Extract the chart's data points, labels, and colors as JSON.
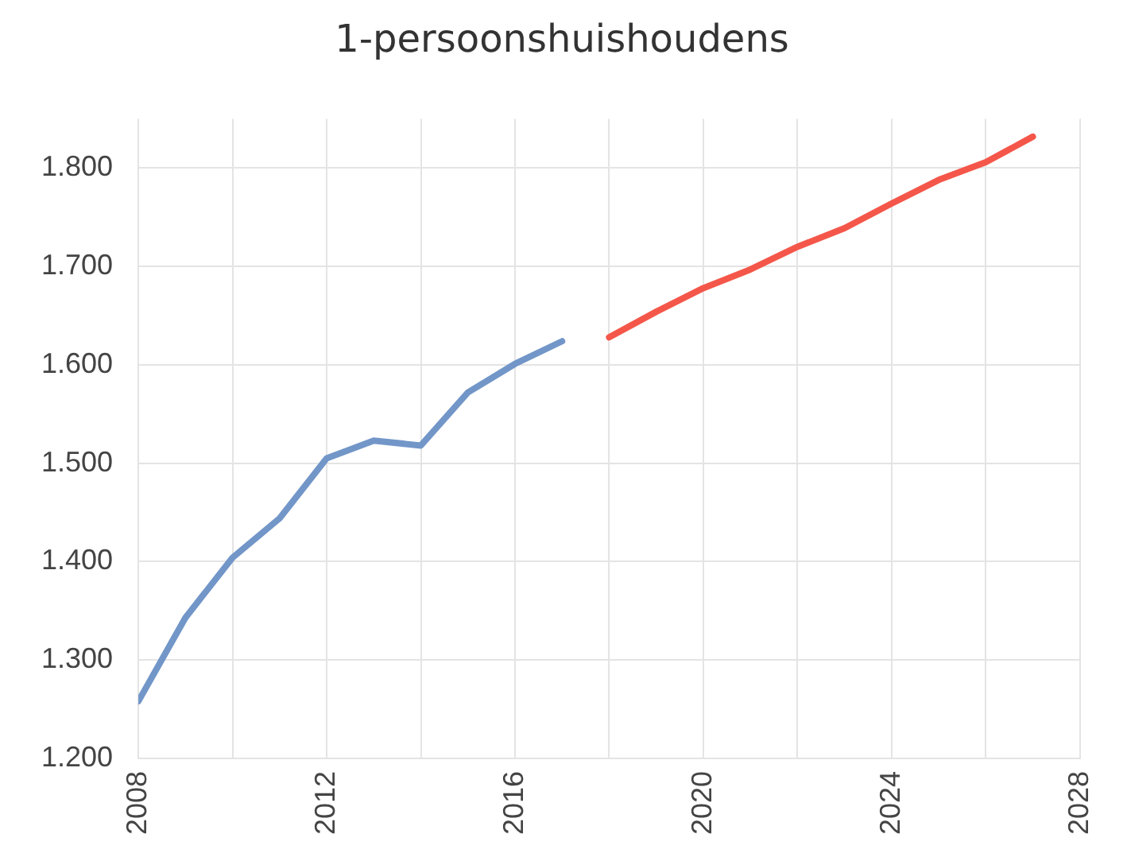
{
  "chart_data": {
    "type": "line",
    "title": "1-persoonshuishoudens",
    "series": [
      {
        "color": "#7296c8",
        "x": [
          2008,
          2009,
          2010,
          2011,
          2012,
          2013,
          2014,
          2015,
          2016,
          2017
        ],
        "values": [
          1258,
          1343,
          1404,
          1444,
          1505,
          1523,
          1518,
          1572,
          1601,
          1624
        ]
      },
      {
        "color": "#f4574a",
        "x": [
          2018,
          2019,
          2020,
          2021,
          2022,
          2023,
          2024,
          2025,
          2026,
          2027
        ],
        "values": [
          1628,
          1654,
          1678,
          1697,
          1720,
          1739,
          1764,
          1788,
          1806,
          1832
        ]
      }
    ],
    "xlim": [
      2008,
      2028
    ],
    "xticks": [
      2008,
      {
        "value": 2010,
        "label": null
      },
      2012,
      {
        "value": 2014,
        "label": null
      },
      2016,
      {
        "value": 2018,
        "label": null
      },
      2020,
      {
        "value": 2022,
        "label": null
      },
      2024,
      {
        "value": 2026,
        "label": null
      },
      2028
    ],
    "ylim": [
      1200,
      1850
    ],
    "yticks": [
      {
        "value": 1200,
        "label": "1.200"
      },
      {
        "value": 1300,
        "label": "1.300"
      },
      {
        "value": 1400,
        "label": "1.400"
      },
      {
        "value": 1500,
        "label": "1.500"
      },
      {
        "value": 1600,
        "label": "1.600"
      },
      {
        "value": 1700,
        "label": "1.700"
      },
      {
        "value": 1800,
        "label": "1.800"
      }
    ],
    "grid": true,
    "legend": false,
    "marker": "none",
    "line_style": "solid"
  }
}
